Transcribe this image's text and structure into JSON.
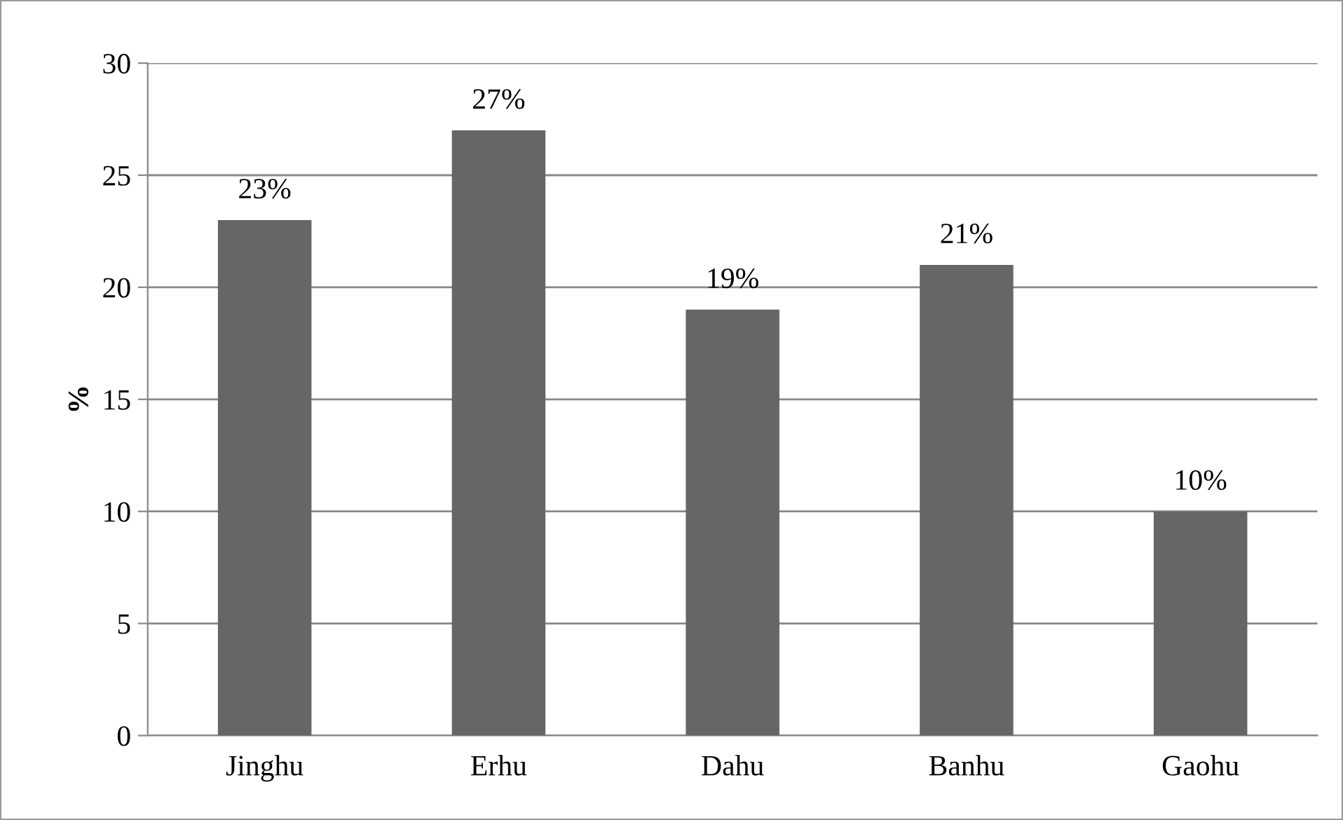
{
  "chart_data": {
    "type": "bar",
    "ylabel": "%",
    "categories": [
      "Jinghu",
      "Erhu",
      "Dahu",
      "Banhu",
      "Gaohu"
    ],
    "values": [
      23,
      27,
      19,
      21,
      10
    ],
    "value_labels": [
      "23%",
      "27%",
      "19%",
      "21%",
      "10%"
    ],
    "color": "#666666",
    "ylim": [
      0,
      30
    ],
    "yticks": [
      0,
      5,
      10,
      15,
      20,
      25,
      30
    ],
    "grid": "y",
    "legend": false
  }
}
